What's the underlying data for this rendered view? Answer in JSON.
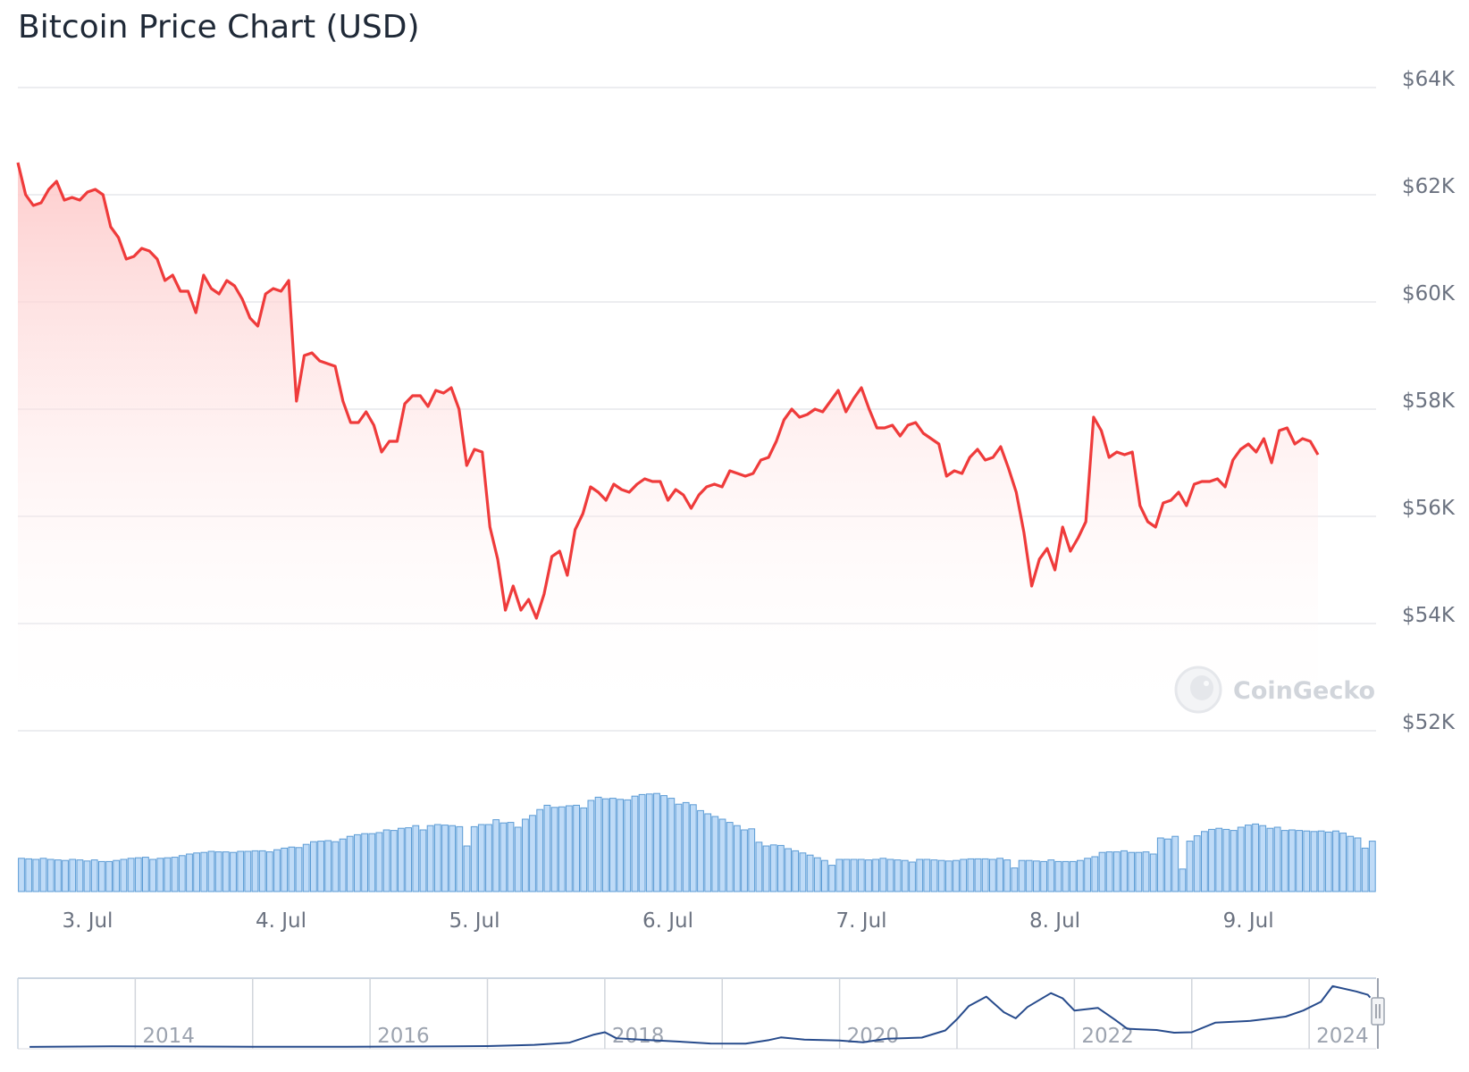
{
  "title": "Bitcoin Price Chart (USD)",
  "watermark": "CoinGecko",
  "colors": {
    "price_line": "#ef3b3b",
    "area_top": "#fecaca",
    "volume_fill": "#bfdbf7",
    "volume_stroke": "#5b9bd5",
    "navigator_line": "#274b8c",
    "grid": "#e5e7eb"
  },
  "chart_data": {
    "type": "line",
    "title": "Bitcoin Price Chart (USD)",
    "ylim": [
      52000,
      64000
    ],
    "y_ticks": [
      {
        "value": 64000,
        "label": "$64K"
      },
      {
        "value": 62000,
        "label": "$62K"
      },
      {
        "value": 60000,
        "label": "$60K"
      },
      {
        "value": 58000,
        "label": "$58K"
      },
      {
        "value": 56000,
        "label": "$56K"
      },
      {
        "value": 54000,
        "label": "$54K"
      },
      {
        "value": 52000,
        "label": "$52K"
      }
    ],
    "xlim": [
      2.64,
      9.66
    ],
    "x_ticks": [
      {
        "value": 3,
        "label": "3. Jul"
      },
      {
        "value": 4,
        "label": "4. Jul"
      },
      {
        "value": 5,
        "label": "5. Jul"
      },
      {
        "value": 6,
        "label": "6. Jul"
      },
      {
        "value": 7,
        "label": "7. Jul"
      },
      {
        "value": 8,
        "label": "8. Jul"
      },
      {
        "value": 9,
        "label": "9. Jul"
      }
    ],
    "grid": true,
    "series": [
      {
        "points": [
          [
            2.64,
            62600
          ],
          [
            2.68,
            62000
          ],
          [
            2.72,
            61800
          ],
          [
            2.76,
            61850
          ],
          [
            2.8,
            62100
          ],
          [
            2.84,
            62250
          ],
          [
            2.88,
            61900
          ],
          [
            2.92,
            61950
          ],
          [
            2.96,
            61900
          ],
          [
            3.0,
            62050
          ],
          [
            3.04,
            62100
          ],
          [
            3.08,
            62000
          ],
          [
            3.12,
            61400
          ],
          [
            3.16,
            61200
          ],
          [
            3.2,
            60800
          ],
          [
            3.24,
            60850
          ],
          [
            3.28,
            61000
          ],
          [
            3.32,
            60950
          ],
          [
            3.36,
            60800
          ],
          [
            3.4,
            60400
          ],
          [
            3.44,
            60500
          ],
          [
            3.48,
            60200
          ],
          [
            3.52,
            60200
          ],
          [
            3.56,
            59800
          ],
          [
            3.6,
            60500
          ],
          [
            3.64,
            60250
          ],
          [
            3.68,
            60150
          ],
          [
            3.72,
            60400
          ],
          [
            3.76,
            60300
          ],
          [
            3.8,
            60050
          ],
          [
            3.84,
            59700
          ],
          [
            3.88,
            59550
          ],
          [
            3.92,
            60150
          ],
          [
            3.96,
            60250
          ],
          [
            4.0,
            60200
          ],
          [
            4.04,
            60400
          ],
          [
            4.08,
            58150
          ],
          [
            4.12,
            59000
          ],
          [
            4.16,
            59050
          ],
          [
            4.2,
            58900
          ],
          [
            4.24,
            58850
          ],
          [
            4.28,
            58800
          ],
          [
            4.32,
            58150
          ],
          [
            4.36,
            57750
          ],
          [
            4.4,
            57750
          ],
          [
            4.44,
            57950
          ],
          [
            4.48,
            57700
          ],
          [
            4.52,
            57200
          ],
          [
            4.56,
            57400
          ],
          [
            4.6,
            57400
          ],
          [
            4.64,
            58100
          ],
          [
            4.68,
            58250
          ],
          [
            4.72,
            58250
          ],
          [
            4.76,
            58050
          ],
          [
            4.8,
            58350
          ],
          [
            4.84,
            58300
          ],
          [
            4.88,
            58400
          ],
          [
            4.92,
            58000
          ],
          [
            4.96,
            56950
          ],
          [
            5.0,
            57250
          ],
          [
            5.04,
            57200
          ],
          [
            5.08,
            55800
          ],
          [
            5.12,
            55200
          ],
          [
            5.16,
            54250
          ],
          [
            5.2,
            54700
          ],
          [
            5.24,
            54250
          ],
          [
            5.28,
            54450
          ],
          [
            5.32,
            54100
          ],
          [
            5.36,
            54550
          ],
          [
            5.4,
            55250
          ],
          [
            5.44,
            55350
          ],
          [
            5.48,
            54900
          ],
          [
            5.52,
            55750
          ],
          [
            5.56,
            56050
          ],
          [
            5.6,
            56550
          ],
          [
            5.64,
            56450
          ],
          [
            5.68,
            56300
          ],
          [
            5.72,
            56600
          ],
          [
            5.76,
            56500
          ],
          [
            5.8,
            56450
          ],
          [
            5.84,
            56600
          ],
          [
            5.88,
            56700
          ],
          [
            5.92,
            56650
          ],
          [
            5.96,
            56650
          ],
          [
            6.0,
            56300
          ],
          [
            6.04,
            56500
          ],
          [
            6.08,
            56400
          ],
          [
            6.12,
            56150
          ],
          [
            6.16,
            56400
          ],
          [
            6.2,
            56550
          ],
          [
            6.24,
            56600
          ],
          [
            6.28,
            56550
          ],
          [
            6.32,
            56850
          ],
          [
            6.36,
            56800
          ],
          [
            6.4,
            56750
          ],
          [
            6.44,
            56800
          ],
          [
            6.48,
            57050
          ],
          [
            6.52,
            57100
          ],
          [
            6.56,
            57400
          ],
          [
            6.6,
            57800
          ],
          [
            6.64,
            58000
          ],
          [
            6.68,
            57850
          ],
          [
            6.72,
            57900
          ],
          [
            6.76,
            58000
          ],
          [
            6.8,
            57950
          ],
          [
            6.84,
            58150
          ],
          [
            6.88,
            58350
          ],
          [
            6.92,
            57950
          ],
          [
            6.96,
            58200
          ],
          [
            7.0,
            58400
          ],
          [
            7.04,
            58000
          ],
          [
            7.08,
            57650
          ],
          [
            7.12,
            57650
          ],
          [
            7.16,
            57700
          ],
          [
            7.2,
            57500
          ],
          [
            7.24,
            57700
          ],
          [
            7.28,
            57750
          ],
          [
            7.32,
            57550
          ],
          [
            7.36,
            57450
          ],
          [
            7.4,
            57350
          ],
          [
            7.44,
            56750
          ],
          [
            7.48,
            56850
          ],
          [
            7.52,
            56800
          ],
          [
            7.56,
            57100
          ],
          [
            7.6,
            57250
          ],
          [
            7.64,
            57050
          ],
          [
            7.68,
            57100
          ],
          [
            7.72,
            57300
          ],
          [
            7.76,
            56900
          ],
          [
            7.8,
            56450
          ],
          [
            7.84,
            55700
          ],
          [
            7.88,
            54700
          ],
          [
            7.92,
            55200
          ],
          [
            7.96,
            55400
          ],
          [
            8.0,
            55000
          ],
          [
            8.04,
            55800
          ],
          [
            8.08,
            55350
          ],
          [
            8.12,
            55600
          ],
          [
            8.16,
            55900
          ],
          [
            8.2,
            57850
          ],
          [
            8.24,
            57600
          ],
          [
            8.28,
            57100
          ],
          [
            8.32,
            57200
          ],
          [
            8.36,
            57150
          ],
          [
            8.4,
            57200
          ],
          [
            8.44,
            56200
          ],
          [
            8.48,
            55900
          ],
          [
            8.52,
            55800
          ],
          [
            8.56,
            56250
          ],
          [
            8.6,
            56300
          ],
          [
            8.64,
            56450
          ],
          [
            8.68,
            56200
          ],
          [
            8.72,
            56600
          ],
          [
            8.76,
            56650
          ],
          [
            8.8,
            56650
          ],
          [
            8.84,
            56700
          ],
          [
            8.88,
            56550
          ],
          [
            8.92,
            57050
          ],
          [
            8.96,
            57250
          ],
          [
            9.0,
            57350
          ],
          [
            9.04,
            57200
          ],
          [
            9.08,
            57450
          ],
          [
            9.12,
            57000
          ],
          [
            9.16,
            57600
          ],
          [
            9.2,
            57650
          ],
          [
            9.24,
            57350
          ],
          [
            9.28,
            57450
          ],
          [
            9.32,
            57400
          ],
          [
            9.36,
            57150
          ]
        ]
      }
    ],
    "volume_bars": [
      6.2,
      6.1,
      6.0,
      6.2,
      6.0,
      5.9,
      5.8,
      6.0,
      5.9,
      5.7,
      5.9,
      5.6,
      5.6,
      5.8,
      6.0,
      6.2,
      6.3,
      6.4,
      6.0,
      6.2,
      6.3,
      6.4,
      6.7,
      7.0,
      7.2,
      7.3,
      7.5,
      7.4,
      7.4,
      7.3,
      7.5,
      7.5,
      7.6,
      7.6,
      7.4,
      7.8,
      8.1,
      8.3,
      8.2,
      8.8,
      9.3,
      9.4,
      9.5,
      9.3,
      9.8,
      10.3,
      10.6,
      10.8,
      10.8,
      11.0,
      11.5,
      11.4,
      11.8,
      11.9,
      12.3,
      11.5,
      12.3,
      12.5,
      12.4,
      12.3,
      12.1,
      8.5,
      12.1,
      12.5,
      12.5,
      13.4,
      12.8,
      12.9,
      12.0,
      13.5,
      14.2,
      15.3,
      16.1,
      15.7,
      15.8,
      16.0,
      16.1,
      15.6,
      17.0,
      17.6,
      17.3,
      17.4,
      17.2,
      17.1,
      17.8,
      18.1,
      18.2,
      18.3,
      17.9,
      17.4,
      16.3,
      16.6,
      16.2,
      15.1,
      14.5,
      14.0,
      13.5,
      12.9,
      12.3,
      11.5,
      11.7,
      9.2,
      8.5,
      8.7,
      8.6,
      8.0,
      7.6,
      7.2,
      6.8,
      6.3,
      5.8,
      4.9,
      6.0,
      6.0,
      6.0,
      6.0,
      5.9,
      6.0,
      6.2,
      6.0,
      5.9,
      5.8,
      5.5,
      6.0,
      6.0,
      5.9,
      5.8,
      5.7,
      5.8,
      6.0,
      6.1,
      6.1,
      6.1,
      6.0,
      6.2,
      5.9,
      4.4,
      5.8,
      5.8,
      5.7,
      5.6,
      5.9,
      5.6,
      5.6,
      5.6,
      5.8,
      6.2,
      6.5,
      7.3,
      7.4,
      7.4,
      7.6,
      7.3,
      7.3,
      7.4,
      7.0,
      10.0,
      9.8,
      10.3,
      4.2,
      9.4,
      10.4,
      11.2,
      11.6,
      11.8,
      11.6,
      11.4,
      12.0,
      12.4,
      12.6,
      12.3,
      11.8,
      12.0,
      11.4,
      11.5,
      11.4,
      11.3,
      11.2,
      11.3,
      11.1,
      11.3,
      10.9,
      10.3,
      10.0,
      8.1,
      9.4
    ],
    "navigator": {
      "year_ticks": [
        "2014",
        "2016",
        "2018",
        "2020",
        "2022",
        "2024"
      ],
      "points": [
        [
          2013.1,
          100
        ],
        [
          2013.8,
          700
        ],
        [
          2014.5,
          500
        ],
        [
          2015.0,
          250
        ],
        [
          2015.8,
          350
        ],
        [
          2016.5,
          650
        ],
        [
          2017.0,
          1000
        ],
        [
          2017.4,
          2500
        ],
        [
          2017.7,
          5000
        ],
        [
          2017.9,
          14000
        ],
        [
          2018.0,
          17000
        ],
        [
          2018.1,
          10000
        ],
        [
          2018.3,
          8500
        ],
        [
          2018.6,
          6500
        ],
        [
          2018.9,
          4000
        ],
        [
          2019.2,
          3800
        ],
        [
          2019.4,
          8000
        ],
        [
          2019.5,
          11000
        ],
        [
          2019.7,
          8500
        ],
        [
          2020.0,
          7500
        ],
        [
          2020.2,
          5500
        ],
        [
          2020.4,
          9500
        ],
        [
          2020.7,
          10800
        ],
        [
          2020.9,
          19000
        ],
        [
          2021.0,
          32000
        ],
        [
          2021.1,
          47000
        ],
        [
          2021.25,
          58000
        ],
        [
          2021.4,
          40000
        ],
        [
          2021.5,
          33000
        ],
        [
          2021.6,
          46000
        ],
        [
          2021.8,
          62000
        ],
        [
          2021.9,
          56000
        ],
        [
          2022.0,
          42000
        ],
        [
          2022.2,
          45000
        ],
        [
          2022.35,
          31000
        ],
        [
          2022.45,
          21000
        ],
        [
          2022.7,
          19500
        ],
        [
          2022.85,
          16500
        ],
        [
          2023.0,
          17000
        ],
        [
          2023.2,
          28000
        ],
        [
          2023.5,
          30000
        ],
        [
          2023.8,
          35000
        ],
        [
          2023.95,
          42000
        ],
        [
          2024.1,
          52000
        ],
        [
          2024.2,
          70000
        ],
        [
          2024.4,
          64000
        ],
        [
          2024.5,
          60000
        ],
        [
          2024.52,
          57000
        ]
      ]
    }
  }
}
